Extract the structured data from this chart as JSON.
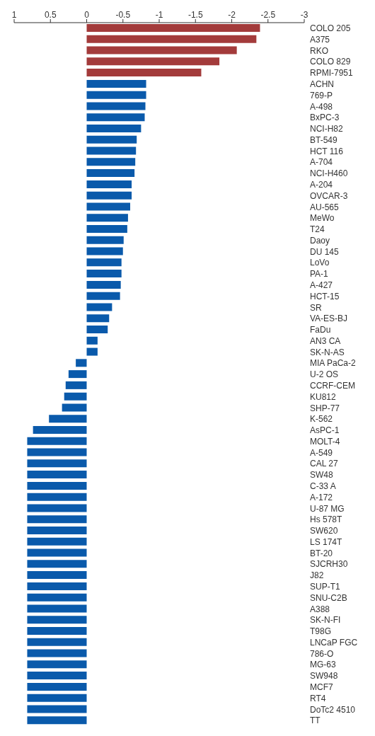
{
  "chart_data": {
    "type": "bar",
    "orientation": "horizontal",
    "categories": [
      "COLO 205",
      "A375",
      "RKO",
      "COLO 829",
      "RPMI-7951",
      "ACHN",
      "769-P",
      "A-498",
      "BxPC-3",
      "NCI-H82",
      "BT-549",
      "HCT 116",
      "A-704",
      "NCI-H460",
      "A-204",
      "OVCAR-3",
      "AU-565",
      "MeWo",
      "T24",
      "Daoy",
      "DU 145",
      "LoVo",
      "PA-1",
      "A-427",
      "HCT-15",
      "SR",
      "VA-ES-BJ",
      "FaDu",
      "AN3 CA",
      "SK-N-AS",
      "MIA PaCa-2",
      "U-2 OS",
      "CCRF-CEM",
      "KU812",
      "SHP-77",
      "K-562",
      "AsPC-1",
      "MOLT-4",
      "A-549",
      "CAL 27",
      "SW48",
      "C-33 A",
      "A-172",
      "U-87 MG",
      "Hs 578T",
      "SW620",
      "LS 174T",
      "BT-20",
      "SJCRH30",
      "J82",
      "SUP-T1",
      "SNU-C2B",
      "A388",
      "SK-N-FI",
      "T98G",
      "LNCaP FGC",
      "786-O",
      "MG-63",
      "SW948",
      "MCF7",
      "RT4",
      "DoTc2 4510",
      "TT"
    ],
    "values": [
      -2.39,
      -2.34,
      -2.07,
      -1.83,
      -1.58,
      -0.82,
      -0.82,
      -0.81,
      -0.8,
      -0.75,
      -0.69,
      -0.68,
      -0.67,
      -0.66,
      -0.62,
      -0.62,
      -0.6,
      -0.57,
      -0.56,
      -0.51,
      -0.5,
      -0.48,
      -0.48,
      -0.47,
      -0.46,
      -0.35,
      -0.31,
      -0.29,
      -0.15,
      -0.15,
      0.15,
      0.25,
      0.29,
      0.31,
      0.34,
      0.52,
      0.74,
      0.82,
      0.82,
      0.82,
      0.82,
      0.82,
      0.82,
      0.82,
      0.82,
      0.82,
      0.82,
      0.82,
      0.82,
      0.82,
      0.82,
      0.82,
      0.82,
      0.82,
      0.82,
      0.82,
      0.82,
      0.82,
      0.82,
      0.82,
      0.82,
      0.82,
      0.82
    ],
    "colors": [
      "#a33b3b",
      "#a33b3b",
      "#a33b3b",
      "#a33b3b",
      "#a33b3b",
      "#0a5aab",
      "#0a5aab",
      "#0a5aab",
      "#0a5aab",
      "#0a5aab",
      "#0a5aab",
      "#0a5aab",
      "#0a5aab",
      "#0a5aab",
      "#0a5aab",
      "#0a5aab",
      "#0a5aab",
      "#0a5aab",
      "#0a5aab",
      "#0a5aab",
      "#0a5aab",
      "#0a5aab",
      "#0a5aab",
      "#0a5aab",
      "#0a5aab",
      "#0a5aab",
      "#0a5aab",
      "#0a5aab",
      "#0a5aab",
      "#0a5aab",
      "#0a5aab",
      "#0a5aab",
      "#0a5aab",
      "#0a5aab",
      "#0a5aab",
      "#0a5aab",
      "#0a5aab",
      "#0a5aab",
      "#0a5aab",
      "#0a5aab",
      "#0a5aab",
      "#0a5aab",
      "#0a5aab",
      "#0a5aab",
      "#0a5aab",
      "#0a5aab",
      "#0a5aab",
      "#0a5aab",
      "#0a5aab",
      "#0a5aab",
      "#0a5aab",
      "#0a5aab",
      "#0a5aab",
      "#0a5aab",
      "#0a5aab",
      "#0a5aab",
      "#0a5aab",
      "#0a5aab",
      "#0a5aab",
      "#0a5aab",
      "#0a5aab",
      "#0a5aab",
      "#0a5aab"
    ],
    "xlim": [
      1,
      -3
    ],
    "xticks": [
      1,
      0.5,
      0,
      -0.5,
      -1,
      -1.5,
      -2,
      -2.5,
      -3
    ]
  }
}
